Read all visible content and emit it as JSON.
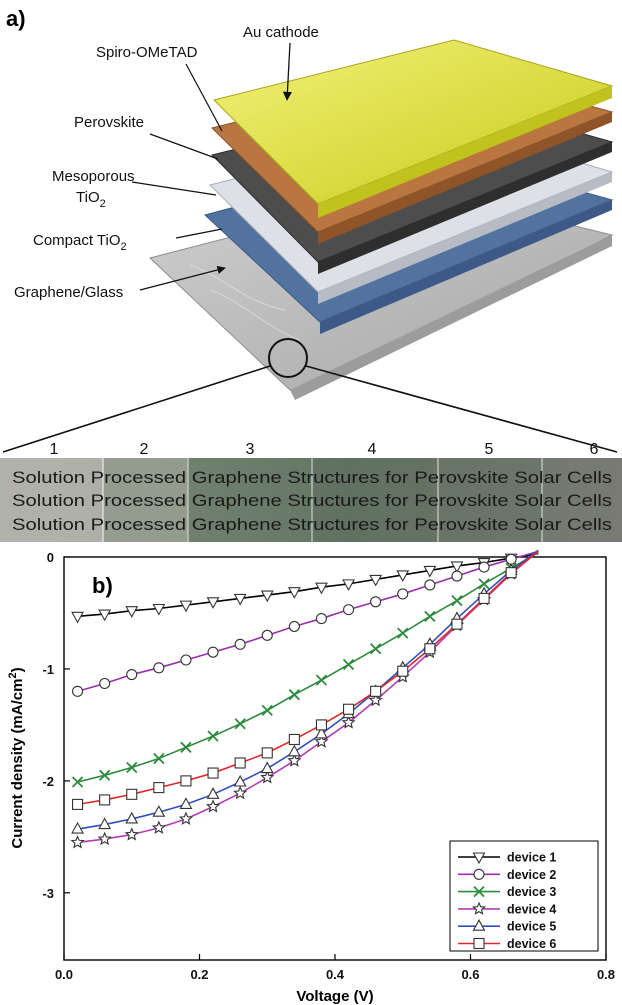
{
  "panel_a": {
    "label": "a)",
    "layers": [
      {
        "name": "Au cathode",
        "color": "#e5e52e"
      },
      {
        "name": "Spiro-OMeTAD",
        "color": "#b8733c"
      },
      {
        "name": "Perovskite",
        "color": "#4a4a4a"
      },
      {
        "name_main": "Mesoporous",
        "name_line2": "TiO",
        "name_sub": "2",
        "color": "#d7dbe3"
      },
      {
        "name_main": "Compact TiO",
        "name_sub": "2",
        "color": "#4e6ea3"
      },
      {
        "name": "Graphene/Glass",
        "color": "#c4c4c4"
      }
    ],
    "transparency_strip": {
      "numbers": [
        "1",
        "2",
        "3",
        "4",
        "5",
        "6"
      ],
      "text": "Solution Processed Graphene Structures for Perovskite Solar Cells"
    }
  },
  "chart_data": {
    "type": "line",
    "panel_label": "b)",
    "xlabel": "Voltage (V)",
    "ylabel_main": "Current density (mA/cm",
    "ylabel_sup": "2",
    "ylabel_close": ")",
    "xlim": [
      0,
      0.8
    ],
    "ylim": [
      -3.6,
      0
    ],
    "xticks": [
      "0.0",
      "0.2",
      "0.4",
      "0.6",
      "0.8"
    ],
    "yticks": [
      "0",
      "-1",
      "-2",
      "-3"
    ],
    "legend_position": "bottom-right",
    "x": [
      0.02,
      0.06,
      0.1,
      0.14,
      0.18,
      0.22,
      0.26,
      0.3,
      0.34,
      0.38,
      0.42,
      0.46,
      0.5,
      0.54,
      0.58,
      0.62,
      0.66,
      0.7
    ],
    "series": [
      {
        "name": "device 1",
        "marker": "triangle-down",
        "color": "#000000",
        "values": [
          -0.53,
          -0.51,
          -0.48,
          -0.46,
          -0.43,
          -0.4,
          -0.37,
          -0.34,
          -0.31,
          -0.27,
          -0.24,
          -0.2,
          -0.16,
          -0.12,
          -0.08,
          -0.05,
          -0.01,
          0.03
        ]
      },
      {
        "name": "device 2",
        "marker": "circle",
        "color": "#9b2fae",
        "values": [
          -1.2,
          -1.13,
          -1.05,
          -0.99,
          -0.92,
          -0.85,
          -0.78,
          -0.7,
          -0.62,
          -0.55,
          -0.47,
          -0.4,
          -0.33,
          -0.25,
          -0.17,
          -0.09,
          -0.02,
          0.05
        ]
      },
      {
        "name": "device 3",
        "marker": "x",
        "color": "#2e8b3e",
        "values": [
          -2.01,
          -1.95,
          -1.88,
          -1.8,
          -1.7,
          -1.6,
          -1.49,
          -1.37,
          -1.23,
          -1.1,
          -0.96,
          -0.82,
          -0.68,
          -0.53,
          -0.39,
          -0.24,
          -0.1,
          0.04
        ]
      },
      {
        "name": "device 4",
        "marker": "star",
        "color": "#b33db3",
        "values": [
          -2.55,
          -2.52,
          -2.48,
          -2.42,
          -2.34,
          -2.23,
          -2.11,
          -1.97,
          -1.82,
          -1.65,
          -1.48,
          -1.28,
          -1.07,
          -0.85,
          -0.61,
          -0.38,
          -0.15,
          0.05
        ]
      },
      {
        "name": "device 5",
        "marker": "triangle-up",
        "color": "#2f4fbf",
        "values": [
          -2.43,
          -2.39,
          -2.34,
          -2.28,
          -2.21,
          -2.12,
          -2.01,
          -1.89,
          -1.74,
          -1.58,
          -1.4,
          -1.2,
          -0.99,
          -0.78,
          -0.55,
          -0.33,
          -0.12,
          0.06
        ]
      },
      {
        "name": "device 6",
        "marker": "square",
        "color": "#e02828",
        "values": [
          -2.21,
          -2.17,
          -2.12,
          -2.06,
          -2.0,
          -1.93,
          -1.84,
          -1.75,
          -1.63,
          -1.5,
          -1.36,
          -1.2,
          -1.02,
          -0.82,
          -0.6,
          -0.37,
          -0.14,
          0.05
        ]
      }
    ]
  }
}
